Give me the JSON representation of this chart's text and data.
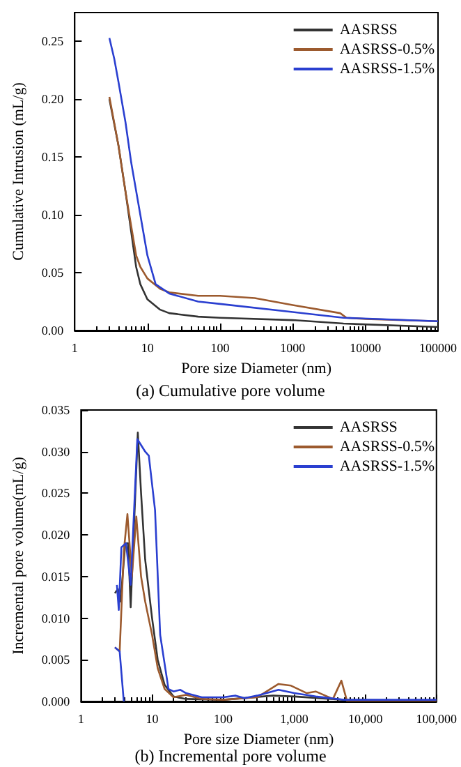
{
  "chart_data": [
    {
      "type": "line",
      "xlabel": "Pore size Diameter (nm)",
      "ylabel": "Cumulative Intrusion (mL/g)",
      "annotations": [
        "(a) Cumulative pore volume"
      ],
      "log": "x",
      "xlim": [
        1,
        100000
      ],
      "xticks": [
        1,
        10,
        100,
        1000,
        10000,
        100000
      ],
      "ylim": [
        0,
        0.275
      ],
      "yticks": [
        {
          "value": 0,
          "label": "0.00"
        },
        {
          "value": 0.05,
          "label": "0.05"
        },
        {
          "value": 0.1,
          "label": "0.10"
        },
        {
          "value": 0.15,
          "label": "0.15"
        },
        {
          "value": 0.2,
          "label": "0.20"
        },
        {
          "value": 0.25,
          "label": "0.25"
        }
      ],
      "legend": "top right",
      "grid": false,
      "marker": "none",
      "line_style": "solid",
      "series": [
        {
          "name": "AASRSS",
          "color": "#333333",
          "x": [
            3,
            4,
            5,
            6,
            7,
            8,
            10,
            15,
            20,
            50,
            100,
            1000,
            5000,
            100000
          ],
          "values": [
            0.2,
            0.16,
            0.12,
            0.085,
            0.055,
            0.04,
            0.027,
            0.018,
            0.015,
            0.012,
            0.011,
            0.009,
            0.006,
            0.003
          ]
        },
        {
          "name": "AASRSS-0.5%",
          "color": "#9c5a2e",
          "x": [
            3,
            4,
            5,
            6,
            7,
            8,
            10,
            15,
            20,
            50,
            100,
            300,
            1000,
            4500,
            5500,
            10000,
            100000
          ],
          "values": [
            0.202,
            0.16,
            0.12,
            0.09,
            0.065,
            0.055,
            0.045,
            0.036,
            0.033,
            0.03,
            0.03,
            0.028,
            0.022,
            0.015,
            0.011,
            0.01,
            0.008
          ]
        },
        {
          "name": "AASRSS-1.5%",
          "color": "#2a3fd0",
          "x": [
            3,
            3.5,
            4,
            5,
            6,
            8,
            10,
            13,
            20,
            50,
            100,
            1000,
            5000,
            100000
          ],
          "values": [
            0.253,
            0.235,
            0.215,
            0.18,
            0.145,
            0.1,
            0.065,
            0.04,
            0.032,
            0.025,
            0.023,
            0.016,
            0.011,
            0.008
          ]
        }
      ]
    },
    {
      "type": "line",
      "xlabel": "Pore size Diameter (nm)",
      "ylabel": "Incremental pore volume(mL/g)",
      "annotations": [
        "(b) Incremental pore volume"
      ],
      "log": "x",
      "xlim": [
        1,
        100000
      ],
      "xticks": [
        1,
        10,
        100,
        {
          "value": 1000,
          "label": "1,000"
        },
        {
          "value": 10000,
          "label": "10,000"
        },
        {
          "value": 100000,
          "label": "100,000"
        }
      ],
      "ylim": [
        0,
        0.035
      ],
      "yticks": [
        {
          "value": 0,
          "label": "0.000"
        },
        {
          "value": 0.005,
          "label": "0.005"
        },
        {
          "value": 0.01,
          "label": "0.010"
        },
        {
          "value": 0.015,
          "label": "0.015"
        },
        {
          "value": 0.02,
          "label": "0.020"
        },
        {
          "value": 0.025,
          "label": "0.025"
        },
        {
          "value": 0.03,
          "label": "0.030"
        },
        {
          "value": 0.035,
          "label": "0.035"
        }
      ],
      "legend": "top right",
      "grid": false,
      "marker": "none",
      "line_style": "solid",
      "series": [
        {
          "name": "AASRSS",
          "color": "#333333",
          "x": [
            3,
            3.3,
            3.6,
            4.2,
            4.6,
            5,
            6.3,
            7,
            8,
            10,
            12,
            15,
            20,
            30,
            100,
            500,
            1000,
            5000,
            100000
          ],
          "values": [
            0.013,
            0.0135,
            0.012,
            0.019,
            0.019,
            0.0113,
            0.0323,
            0.025,
            0.017,
            0.01,
            0.005,
            0.002,
            0.0006,
            0.0003,
            0.0002,
            0.0007,
            0.0006,
            0.0002,
            0.0001
          ]
        },
        {
          "name": "AASRSS-0.5%",
          "color": "#9c5a2e",
          "x": [
            3,
            3.5,
            4,
            4.5,
            5.2,
            6,
            7,
            8,
            10,
            12,
            15,
            20,
            30,
            50,
            100,
            300,
            600,
            900,
            1500,
            2000,
            3500,
            4600,
            5500,
            100000
          ],
          "values": [
            0.0065,
            0.006,
            0.018,
            0.0225,
            0.015,
            0.0222,
            0.015,
            0.012,
            0.008,
            0.004,
            0.0015,
            0.0005,
            0.0008,
            0.0003,
            0.0002,
            0.0005,
            0.0021,
            0.0019,
            0.001,
            0.0012,
            0.0003,
            0.0025,
            0.0001,
            0.0001
          ]
        },
        {
          "name": "AASRSS-1.5%",
          "color": "#2a3fd0",
          "x": [
            3.2,
            3.4,
            3.7,
            4.3,
            5,
            6.2,
            8,
            9,
            11,
            13,
            17,
            20,
            25,
            30,
            50,
            100,
            150,
            200,
            300,
            600,
            1000,
            2000,
            5000,
            100000
          ],
          "values": [
            0.014,
            0.011,
            0.0185,
            0.019,
            0.014,
            0.0315,
            0.03,
            0.0295,
            0.023,
            0.008,
            0.0015,
            0.0012,
            0.0014,
            0.001,
            0.0005,
            0.0005,
            0.0007,
            0.0004,
            0.0007,
            0.0014,
            0.001,
            0.0006,
            0.0002,
            0.0002
          ]
        },
        {
          "color": "#2a3fd0",
          "x": [
            3,
            3.5,
            4
          ],
          "values": [
            0.0065,
            0.006,
            0
          ]
        }
      ]
    }
  ]
}
